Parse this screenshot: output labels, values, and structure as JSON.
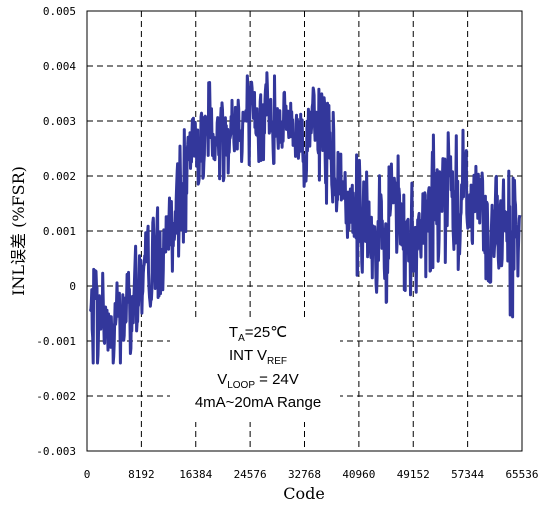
{
  "chart_data": {
    "type": "line",
    "xlabel": "Code",
    "ylabel": "INL误差 (%FSR)",
    "xlim": [
      0,
      65536
    ],
    "ylim": [
      -0.003,
      0.005
    ],
    "x_ticks": [
      0,
      8192,
      16384,
      24576,
      32768,
      40960,
      49152,
      57344,
      65536
    ],
    "x_tick_labels": [
      "0",
      "8192",
      "16384",
      "24576",
      "32768",
      "40960",
      "49152",
      "57344",
      "65536"
    ],
    "y_ticks": [
      0.005,
      0.004,
      0.003,
      0.002,
      0.001,
      0,
      -0.001,
      -0.002,
      -0.003
    ],
    "y_tick_labels": [
      "0.005",
      "0.004",
      "0.003",
      "0.002",
      "0.001",
      "0",
      "-0.001",
      "-0.002",
      "-0.003"
    ],
    "grid": true,
    "grid_style": "dashed",
    "series_color": "#33379b",
    "annotation": {
      "ta_main": "T",
      "ta_sub": "A",
      "ta_rest": "=25℃",
      "vref_main": "INT V",
      "vref_sub": "REF",
      "vloop_main": "V",
      "vloop_sub": "LOOP",
      "vloop_rest": " = 24V",
      "range": "4mA~20mA Range"
    },
    "series": [
      {
        "x": [
          0,
          2048,
          4096,
          6144,
          8192,
          10240,
          12288,
          14336,
          16384,
          18432,
          20480,
          22528,
          24576,
          26624,
          28672,
          30720,
          32768,
          34816,
          36864,
          38912,
          40960,
          43008,
          45056,
          47104,
          49152,
          51200,
          53248,
          55296,
          57344,
          59392,
          61440,
          63488,
          65536
        ],
        "y": [
          -0.0005,
          -0.0006,
          -0.0005,
          -0.0006,
          0.0003,
          0.0007,
          0.0009,
          0.0017,
          0.0027,
          0.0029,
          0.0028,
          0.0031,
          0.003,
          0.0031,
          0.003,
          0.003,
          0.0027,
          0.0028,
          0.0022,
          0.0018,
          0.0012,
          0.0008,
          0.0009,
          0.0012,
          0.001,
          0.0014,
          0.0017,
          0.0015,
          0.0016,
          0.0015,
          0.0012,
          0.0008,
          0.0005
        ],
        "band": [
          0.0009,
          0.0008,
          0.0009,
          0.0008,
          0.0008,
          0.001,
          0.0008,
          0.001,
          0.0009,
          0.0008,
          0.0009,
          0.0008,
          0.0008,
          0.0008,
          0.0008,
          0.0008,
          0.0009,
          0.0008,
          0.001,
          0.001,
          0.0011,
          0.0011,
          0.0012,
          0.0012,
          0.0012,
          0.0012,
          0.0012,
          0.0012,
          0.0013,
          0.0013,
          0.0012,
          0.0013,
          0.0012
        ]
      }
    ]
  }
}
